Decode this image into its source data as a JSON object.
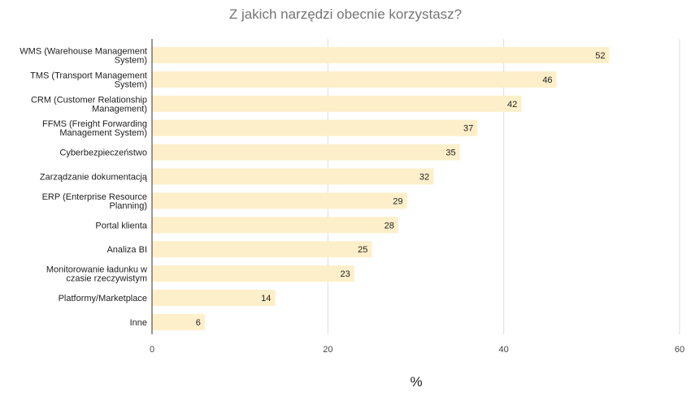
{
  "chart_data": {
    "type": "bar",
    "orientation": "horizontal",
    "title": "Z jakich narzędzi obecnie korzystasz?",
    "xlabel": "%",
    "ylabel": "",
    "xlim": [
      0,
      60
    ],
    "xticks": [
      "0",
      "20",
      "40",
      "60"
    ],
    "grid": true,
    "bar_color": "#fdefc9",
    "categories": [
      [
        "WMS (Warehouse Management",
        "System)"
      ],
      [
        "TMS (Transport Management",
        "System)"
      ],
      [
        "CRM (Customer Relationship",
        "Management)"
      ],
      [
        "FFMS (Freight Forwarding",
        "Management System)"
      ],
      [
        "Cyberbezpieczeństwo"
      ],
      [
        "Zarządzanie dokumentacją"
      ],
      [
        "ERP (Enterprise Resource",
        "Planning)"
      ],
      [
        "Portal klienta"
      ],
      [
        "Analiza BI"
      ],
      [
        "Monitorowanie ładunku w",
        "czasie rzeczywistym"
      ],
      [
        "Platformy/Marketplace"
      ],
      [
        "Inne"
      ]
    ],
    "values": [
      52,
      46,
      42,
      37,
      35,
      32,
      29,
      28,
      25,
      23,
      14,
      6
    ]
  }
}
